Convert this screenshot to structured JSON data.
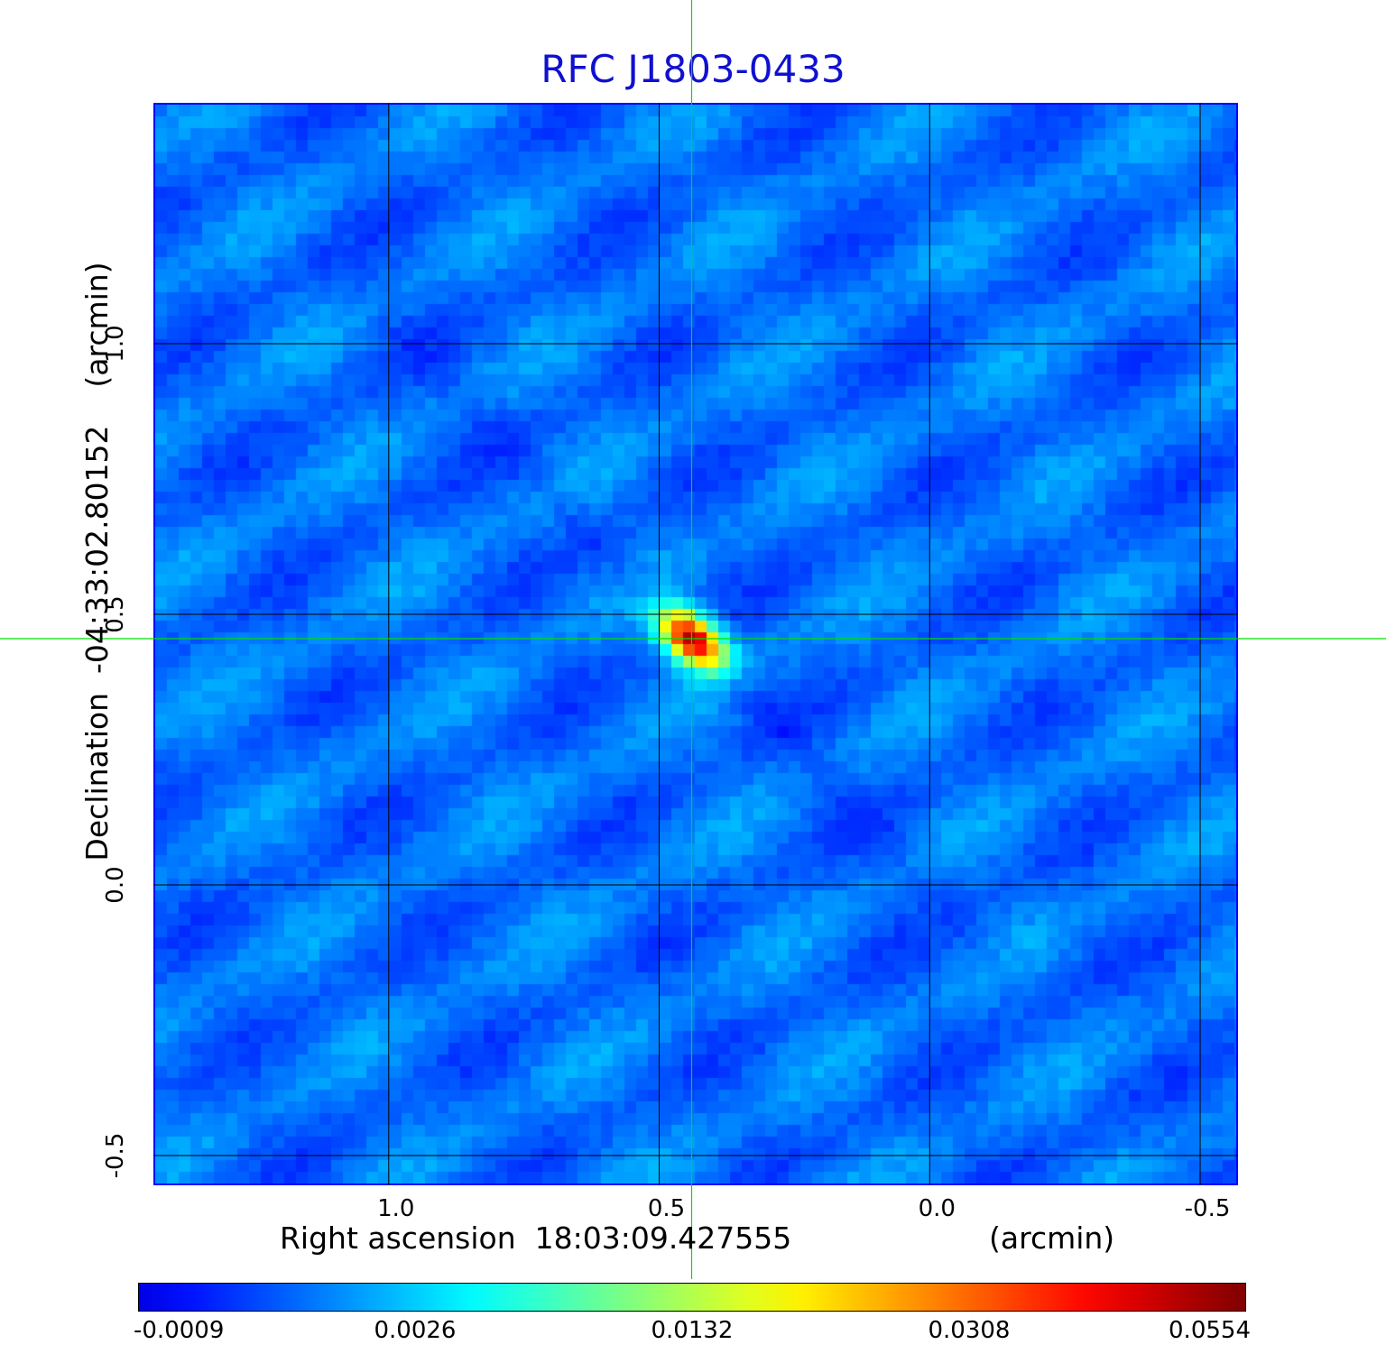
{
  "chart_data": {
    "type": "heatmap",
    "title": "RFC J1803-0433",
    "xlabel": "Right ascension  18:03:09.427555",
    "xunit": "(arcmin)",
    "ylabel": "Declination  -04:33:02.80152",
    "yunit": "(arcmin)",
    "xlim": [
      1.435,
      -0.57
    ],
    "ylim": [
      -0.555,
      1.445
    ],
    "x_ticks": [
      "1.0",
      "0.5",
      "0.0",
      "-0.5"
    ],
    "x_tick_values": [
      1.0,
      0.5,
      0.0,
      -0.5
    ],
    "y_ticks": [
      "-0.5",
      "0.0",
      "0.5",
      "1.0"
    ],
    "y_tick_values": [
      -0.5,
      0.0,
      0.5,
      1.0
    ],
    "grid": true,
    "grid_color": "#000000",
    "crosshair": {
      "x": 0.44,
      "y": 0.455,
      "color": "#00dd00"
    },
    "source_peak": {
      "x": 0.44,
      "y": 0.455,
      "value": 0.0554
    },
    "colormap": "jet",
    "colorbar": {
      "labels": [
        "-0.0009",
        "0.0026",
        "0.0132",
        "0.0308",
        "0.0554"
      ],
      "values": [
        -0.0009,
        0.0026,
        0.0132,
        0.0308,
        0.0554
      ]
    }
  }
}
